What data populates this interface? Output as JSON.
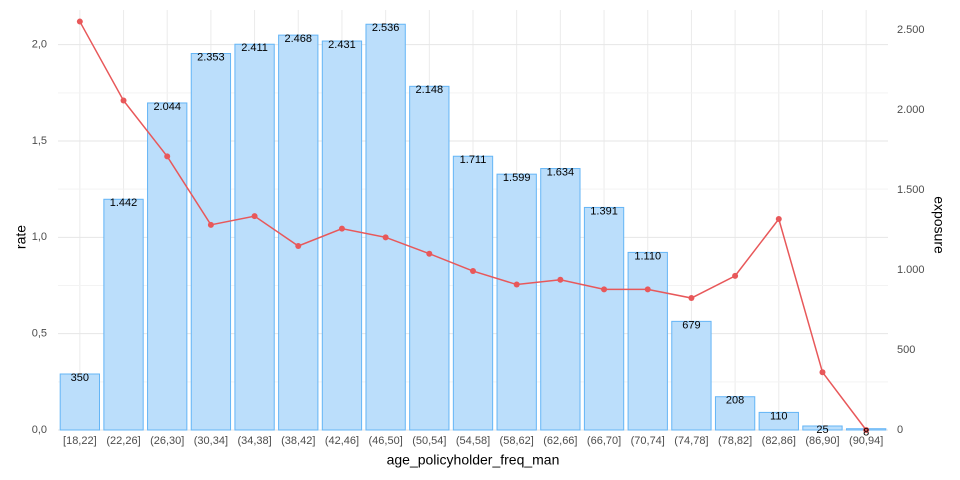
{
  "chart_data": {
    "type": "bar-line",
    "xlabel": "age_policyholder_freq_man",
    "ylabel": "rate",
    "y2label": "exposure",
    "categories": [
      "[18,22]",
      "(22,26]",
      "(26,30]",
      "(30,34]",
      "(34,38]",
      "(38,42]",
      "(42,46]",
      "(46,50]",
      "(50,54]",
      "(54,58]",
      "(58,62]",
      "(62,66]",
      "(66,70]",
      "(70,74]",
      "(74,78]",
      "(78,82]",
      "(82,86]",
      "(86,90]",
      "(90,94]"
    ],
    "series": [
      {
        "type": "bar",
        "axis": "y2",
        "color": "#bbdefb",
        "edgecolor": "#64b5f6",
        "values": [
          350,
          1442,
          2044,
          2353,
          2411,
          2468,
          2431,
          2536,
          2148,
          1711,
          1599,
          1634,
          1391,
          1110,
          679,
          208,
          110,
          25,
          8
        ],
        "value_labels": [
          "350",
          "1.442",
          "2.044",
          "2.353",
          "2.411",
          "2.468",
          "2.431",
          "2.536",
          "2.148",
          "1.711",
          "1.599",
          "1.634",
          "1.391",
          "1.110",
          "679",
          "208",
          "110",
          "25",
          "8"
        ]
      },
      {
        "type": "line",
        "color": "#e8585a",
        "values": [
          2.12,
          1.71,
          1.42,
          1.065,
          1.11,
          0.955,
          1.045,
          1.0,
          0.915,
          0.825,
          0.755,
          0.78,
          0.73,
          0.73,
          0.685,
          0.8,
          1.095,
          0.3,
          0
        ]
      }
    ],
    "ylim": [
      0,
      2.18
    ],
    "yticks": [
      {
        "value": 0,
        "label": "0,0"
      },
      {
        "value": 0.5,
        "label": "0,5"
      },
      {
        "value": 1,
        "label": "1,0"
      },
      {
        "value": 1.5,
        "label": "1,5"
      },
      {
        "value": 2,
        "label": "2,0"
      }
    ],
    "y2lim": [
      0,
      2625
    ],
    "y2ticks": [
      0,
      500,
      {
        "value": 1000,
        "label": "1.000"
      },
      {
        "value": 1500,
        "label": "1.500"
      },
      {
        "value": 2000,
        "label": "2.000"
      },
      {
        "value": 2500,
        "label": "2.500"
      }
    ],
    "grid": true
  }
}
